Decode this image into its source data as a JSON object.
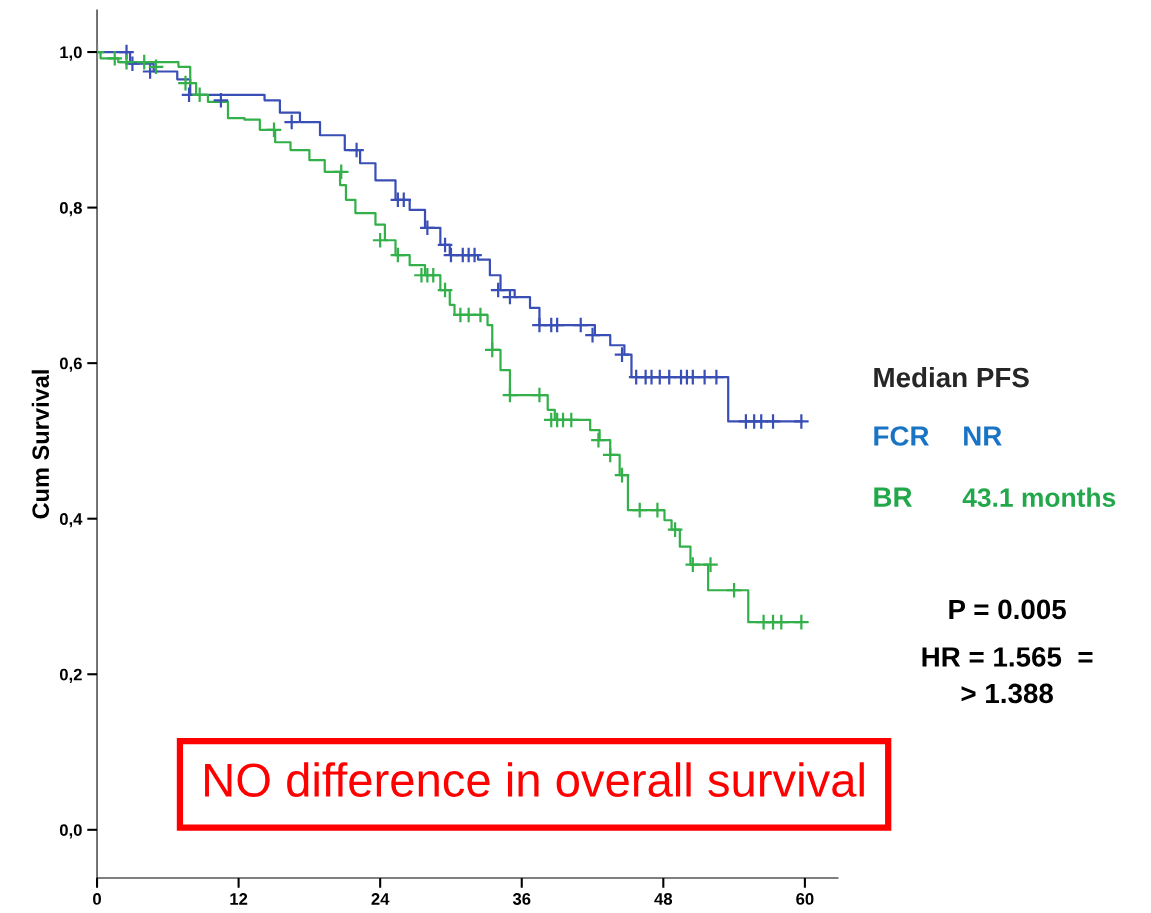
{
  "chart_data": {
    "type": "step",
    "ylabel": "Cum Survival",
    "xlim": [
      0,
      62.8
    ],
    "xticks": [
      0,
      12,
      24,
      36,
      48,
      60
    ],
    "ylim": [
      -0.062,
      1.054
    ],
    "yticks": [
      {
        "value": 0,
        "label": "0,0"
      },
      {
        "value": 0.2,
        "label": "0,2"
      },
      {
        "value": 0.4,
        "label": "0,4"
      },
      {
        "value": 0.6,
        "label": "0,6"
      },
      {
        "value": 0.8,
        "label": "0,8"
      },
      {
        "value": 1.0,
        "label": "1,0"
      }
    ],
    "grid": false,
    "legend": false,
    "line_style": "solid",
    "series": [
      {
        "name": "FCR",
        "color": "#3a4fb5",
        "x": [
          0,
          2.8,
          4.8,
          6.8,
          7.9,
          14.2,
          15.5,
          17.2,
          18.9,
          21,
          22.3,
          23.6,
          25.3,
          26.5,
          27.8,
          29.1,
          29.9,
          32.3,
          33.3,
          34.2,
          35.4,
          36.7,
          37.5,
          40.1,
          42.2,
          43.5,
          44.7,
          45.3,
          53.5,
          59.7
        ],
        "values": [
          1.0,
          0.985,
          0.975,
          0.965,
          0.945,
          0.938,
          0.922,
          0.91,
          0.893,
          0.874,
          0.857,
          0.835,
          0.81,
          0.797,
          0.774,
          0.752,
          0.739,
          0.733,
          0.713,
          0.694,
          0.685,
          0.671,
          0.649,
          0.649,
          0.636,
          0.623,
          0.611,
          0.582,
          0.525,
          0.525
        ]
      },
      {
        "name": "BR",
        "color": "#33b04a",
        "x": [
          0,
          0.3,
          1.8,
          6.9,
          7.9,
          8.4,
          9.4,
          11.1,
          12.5,
          13.8,
          15.1,
          16.4,
          18,
          19.3,
          20.6,
          21.1,
          21.9,
          23.6,
          24.4,
          25.3,
          26.5,
          27.8,
          29.1,
          29.9,
          30.3,
          33.1,
          33.5,
          34.2,
          35,
          38.2,
          38.8,
          41.8,
          42.6,
          43.5,
          44.3,
          45,
          48.1,
          48.7,
          49.4,
          50.3,
          51.8,
          55.2,
          59.7
        ],
        "values": [
          1.0,
          0.992,
          0.987,
          0.981,
          0.96,
          0.945,
          0.936,
          0.915,
          0.913,
          0.9,
          0.884,
          0.874,
          0.861,
          0.846,
          0.829,
          0.81,
          0.793,
          0.778,
          0.758,
          0.739,
          0.726,
          0.713,
          0.694,
          0.675,
          0.662,
          0.649,
          0.617,
          0.591,
          0.559,
          0.54,
          0.527,
          0.514,
          0.501,
          0.482,
          0.456,
          0.411,
          0.398,
          0.386,
          0.364,
          0.341,
          0.308,
          0.267,
          0.267
        ]
      },
      {
        "type": "scatter",
        "marker": "cross",
        "color": "#3a4fb5",
        "x": [
          2.5,
          3,
          4.5,
          7.8,
          10.5,
          16.5,
          22,
          25.5,
          26,
          28,
          29.5,
          30,
          31,
          31.5,
          32,
          34,
          35,
          37.5,
          38.5,
          39,
          41,
          42,
          44.5,
          45.7,
          46.5,
          47,
          47.7,
          48.5,
          49.5,
          50,
          50.5,
          51.5,
          52.5,
          55,
          55.7,
          56.3,
          57.3,
          59.7
        ],
        "values": [
          1.0,
          0.985,
          0.975,
          0.945,
          0.938,
          0.91,
          0.874,
          0.81,
          0.81,
          0.774,
          0.752,
          0.739,
          0.739,
          0.739,
          0.739,
          0.694,
          0.685,
          0.649,
          0.649,
          0.649,
          0.649,
          0.636,
          0.611,
          0.582,
          0.582,
          0.582,
          0.582,
          0.582,
          0.582,
          0.582,
          0.582,
          0.582,
          0.582,
          0.525,
          0.525,
          0.525,
          0.525,
          0.525
        ]
      },
      {
        "type": "scatter",
        "marker": "cross",
        "color": "#33b04a",
        "x": [
          0,
          1.5,
          2.5,
          4,
          5,
          7.5,
          8.7,
          15,
          20.7,
          24,
          25.5,
          27.5,
          28,
          28.5,
          29.5,
          30.8,
          31.5,
          32.5,
          33.5,
          35,
          37.5,
          38.5,
          39,
          39.5,
          40.2,
          42.5,
          43.5,
          44.5,
          46,
          47.5,
          49,
          50.5,
          52,
          54,
          56.5,
          57.3,
          58,
          59.7
        ],
        "values": [
          1.0,
          0.992,
          0.987,
          0.987,
          0.981,
          0.96,
          0.945,
          0.9,
          0.846,
          0.758,
          0.739,
          0.713,
          0.713,
          0.713,
          0.694,
          0.662,
          0.662,
          0.662,
          0.617,
          0.559,
          0.559,
          0.527,
          0.527,
          0.527,
          0.527,
          0.501,
          0.482,
          0.456,
          0.411,
          0.411,
          0.386,
          0.341,
          0.341,
          0.308,
          0.267,
          0.267,
          0.267,
          0.267
        ]
      }
    ],
    "annotations": [
      "Median PFS",
      "NR",
      "43.1 months",
      "P = 0.005",
      "HR = 1.565  =",
      "> 1.388",
      "NO difference in overall survival"
    ]
  }
}
